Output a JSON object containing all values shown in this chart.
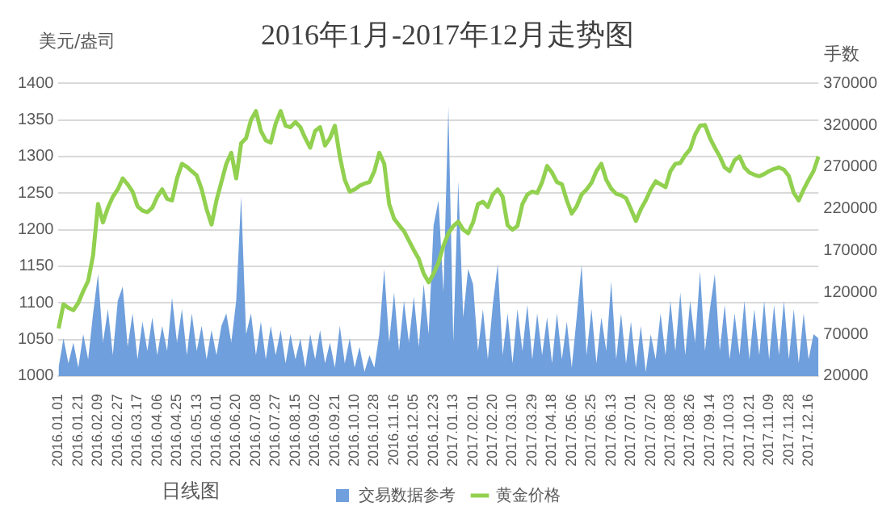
{
  "chart_data": {
    "type": "line",
    "title": "2016年1月-2017年12月走势图",
    "xlabel": "日线图",
    "ylabel": "美元/盎司",
    "y2label": "手数",
    "categories": [
      "2016.01.01",
      null,
      null,
      null,
      "2016.01.21",
      null,
      null,
      null,
      "2016.02.09",
      null,
      null,
      null,
      "2016.02.27",
      null,
      null,
      null,
      "2016.03.17",
      null,
      null,
      null,
      "2016.04.06",
      null,
      null,
      null,
      "2016.04.25",
      null,
      null,
      null,
      "2016.05.13",
      null,
      null,
      null,
      "2016.06.01",
      null,
      null,
      null,
      "2016.06.20",
      null,
      null,
      null,
      "2016.07.08",
      null,
      null,
      null,
      "2016.07.27",
      null,
      null,
      null,
      "2016.08.15",
      null,
      null,
      null,
      "2016.09.02",
      null,
      null,
      null,
      "2016.09.21",
      null,
      null,
      null,
      "2016.10.10",
      null,
      null,
      null,
      "2016.10.28",
      null,
      null,
      null,
      "2016.11.16",
      null,
      null,
      null,
      "2016.12.05",
      null,
      null,
      null,
      "2016.12.23",
      null,
      null,
      null,
      "2017.01.13",
      null,
      null,
      null,
      "2017.02.01",
      null,
      null,
      null,
      "2017.02.20",
      null,
      null,
      null,
      "2017.03.10",
      null,
      null,
      null,
      "2017.03.29",
      null,
      null,
      null,
      "2017.04.18",
      null,
      null,
      null,
      "2017.05.06",
      null,
      null,
      null,
      "2017.05.25",
      null,
      null,
      null,
      "2017.06.13",
      null,
      null,
      null,
      "2017.07.01",
      null,
      null,
      null,
      "2017.07.20",
      null,
      null,
      null,
      "2017.08.08",
      null,
      null,
      null,
      "2017.08.26",
      null,
      null,
      null,
      "2017.09.14",
      null,
      null,
      null,
      "2017.10.03",
      null,
      null,
      null,
      "2017.10.21",
      null,
      null,
      null,
      "2017.11.09",
      null,
      null,
      null,
      "2017.11.28",
      null,
      null,
      null,
      "2017.12.16",
      null,
      null
    ],
    "series": [
      {
        "name": "交易数据参考",
        "type": "area",
        "axis": "y2",
        "color": "#6f9fdc",
        "values": [
          30000,
          65000,
          35000,
          60000,
          30000,
          70000,
          40000,
          95000,
          142000,
          60000,
          100000,
          45000,
          110000,
          127000,
          55000,
          95000,
          40000,
          85000,
          50000,
          90000,
          45000,
          80000,
          50000,
          114000,
          60000,
          100000,
          45000,
          95000,
          50000,
          80000,
          40000,
          75000,
          45000,
          80000,
          95000,
          60000,
          110000,
          235000,
          70000,
          95000,
          45000,
          85000,
          40000,
          80000,
          45000,
          75000,
          35000,
          70000,
          40000,
          65000,
          30000,
          70000,
          40000,
          75000,
          35000,
          60000,
          30000,
          80000,
          35000,
          65000,
          30000,
          55000,
          25000,
          45000,
          30000,
          70000,
          148000,
          60000,
          120000,
          50000,
          110000,
          60000,
          115000,
          55000,
          130000,
          70000,
          200000,
          230000,
          120000,
          342000,
          60000,
          253000,
          90000,
          148000,
          130000,
          50000,
          100000,
          40000,
          105000,
          154000,
          45000,
          95000,
          35000,
          100000,
          50000,
          105000,
          40000,
          95000,
          45000,
          90000,
          35000,
          95000,
          40000,
          85000,
          30000,
          90000,
          153000,
          45000,
          100000,
          35000,
          90000,
          50000,
          133000,
          40000,
          95000,
          35000,
          85000,
          30000,
          80000,
          25000,
          70000,
          40000,
          95000,
          45000,
          110000,
          50000,
          120000,
          45000,
          110000,
          60000,
          145000,
          50000,
          100000,
          142000,
          50000,
          105000,
          40000,
          95000,
          45000,
          110000,
          40000,
          100000,
          45000,
          110000,
          40000,
          105000,
          45000,
          110000,
          40000,
          100000,
          35000,
          95000,
          40000,
          70000,
          65000
        ]
      },
      {
        "name": "黄金价格",
        "color": "#92d050",
        "values": [
          1065,
          1098,
          1093,
          1090,
          1100,
          1116,
          1130,
          1165,
          1235,
          1210,
          1230,
          1245,
          1255,
          1270,
          1262,
          1252,
          1232,
          1226,
          1224,
          1230,
          1245,
          1255,
          1242,
          1240,
          1270,
          1290,
          1286,
          1280,
          1274,
          1255,
          1228,
          1207,
          1240,
          1265,
          1290,
          1305,
          1270,
          1318,
          1325,
          1350,
          1362,
          1335,
          1322,
          1319,
          1345,
          1362,
          1342,
          1340,
          1347,
          1340,
          1325,
          1312,
          1335,
          1340,
          1315,
          1325,
          1342,
          1300,
          1268,
          1252,
          1255,
          1260,
          1263,
          1265,
          1280,
          1305,
          1290,
          1235,
          1215,
          1206,
          1198,
          1185,
          1172,
          1160,
          1140,
          1128,
          1140,
          1155,
          1178,
          1195,
          1205,
          1211,
          1200,
          1195,
          1210,
          1235,
          1238,
          1231,
          1248,
          1255,
          1245,
          1206,
          1200,
          1205,
          1235,
          1248,
          1252,
          1250,
          1265,
          1287,
          1278,
          1265,
          1262,
          1240,
          1222,
          1232,
          1248,
          1255,
          1264,
          1280,
          1290,
          1268,
          1256,
          1249,
          1247,
          1243,
          1228,
          1212,
          1228,
          1240,
          1255,
          1266,
          1262,
          1258,
          1280,
          1290,
          1291,
          1302,
          1310,
          1330,
          1342,
          1343,
          1325,
          1312,
          1300,
          1285,
          1280,
          1295,
          1300,
          1285,
          1278,
          1275,
          1273,
          1276,
          1280,
          1283,
          1285,
          1282,
          1273,
          1250,
          1240,
          1255,
          1268,
          1280,
          1300
        ]
      }
    ],
    "ylim": [
      1000,
      1400
    ],
    "yticks": [
      1000,
      1050,
      1100,
      1150,
      1200,
      1250,
      1300,
      1350,
      1400
    ],
    "y2lim": [
      20000,
      370000
    ],
    "y2ticks": [
      20000,
      70000,
      120000,
      170000,
      220000,
      270000,
      320000,
      370000
    ],
    "grid": "y",
    "legend": "bottom"
  }
}
